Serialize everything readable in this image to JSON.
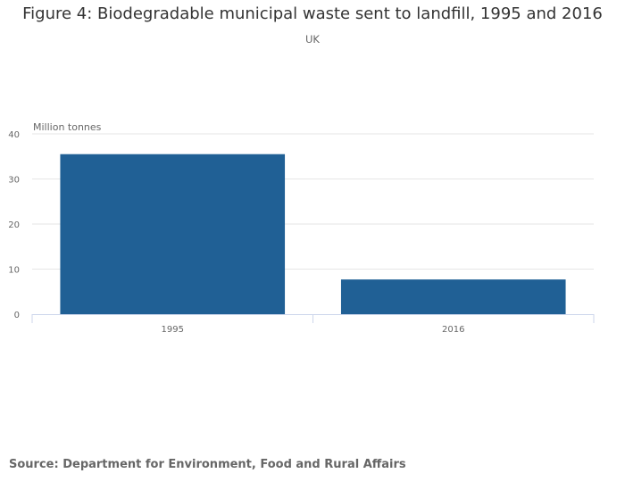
{
  "chart_data": {
    "type": "bar",
    "title": "Figure 4: Biodegradable municipal waste sent to landfill, 1995 and 2016",
    "subtitle": "UK",
    "ylabel": "Million tonnes",
    "xlabel": "",
    "categories": [
      "1995",
      "2016"
    ],
    "values": [
      35.5,
      7.7
    ],
    "ylim": [
      0,
      40
    ],
    "yticks": [
      0,
      10,
      20,
      30,
      40
    ],
    "grid": true,
    "bar_color": "#206095"
  },
  "footer": {
    "source": "Source: Department for Environment, Food and Rural Affairs"
  }
}
